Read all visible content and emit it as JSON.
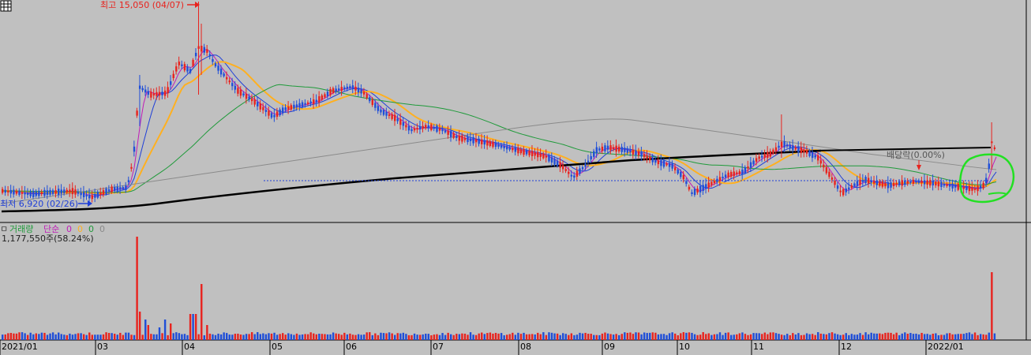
{
  "colors": {
    "background": "#c0c0c0",
    "up": "#e8231e",
    "down": "#1f4ed8",
    "ma5": "#c01bb8",
    "ma10": "#1f3fd8",
    "ma20": "#ffb020",
    "ma60": "#1f9a3a",
    "ma120": "#8a8a8a",
    "ma240": "#000000",
    "annotation_circle": "#22e022",
    "min_marker": "#1f3fd8",
    "max_marker": "#e8231e",
    "panel_border": "#000000"
  },
  "price_panel": {
    "max_label": "최고 15,050 (04/07)",
    "min_label": "최저 6,920 (02/26)",
    "dividend_label": "배당락(0.00%)"
  },
  "volume_panel": {
    "legend": {
      "box": "ㅁ",
      "title": "거래량",
      "simple": "단순",
      "ma_values": [
        "0",
        "0",
        "0",
        "0"
      ],
      "ma_colors": [
        "#c01bb8",
        "#ffb020",
        "#1f9a3a",
        "#8a8a8a"
      ]
    },
    "current_label": "1,177,550주(58.24%)"
  },
  "x_axis": {
    "labels": [
      "2021/01",
      "03",
      "04",
      "05",
      "06",
      "07",
      "08",
      "09",
      "10",
      "11",
      "12",
      "2022/01"
    ]
  },
  "chart_data": {
    "type": "candlestick",
    "price_max": {
      "value": 15050,
      "date": "04/07"
    },
    "price_min": {
      "value": 6920,
      "date": "02/26"
    },
    "moving_averages": [
      "MA5",
      "MA10",
      "MA20",
      "MA60",
      "MA120",
      "MA240"
    ],
    "x_labels": [
      "2021/01",
      "03",
      "04",
      "05",
      "06",
      "07",
      "08",
      "09",
      "10",
      "11",
      "12",
      "2022/01"
    ],
    "volume_latest": {
      "shares": 1177550,
      "change_pct": 58.24
    }
  }
}
